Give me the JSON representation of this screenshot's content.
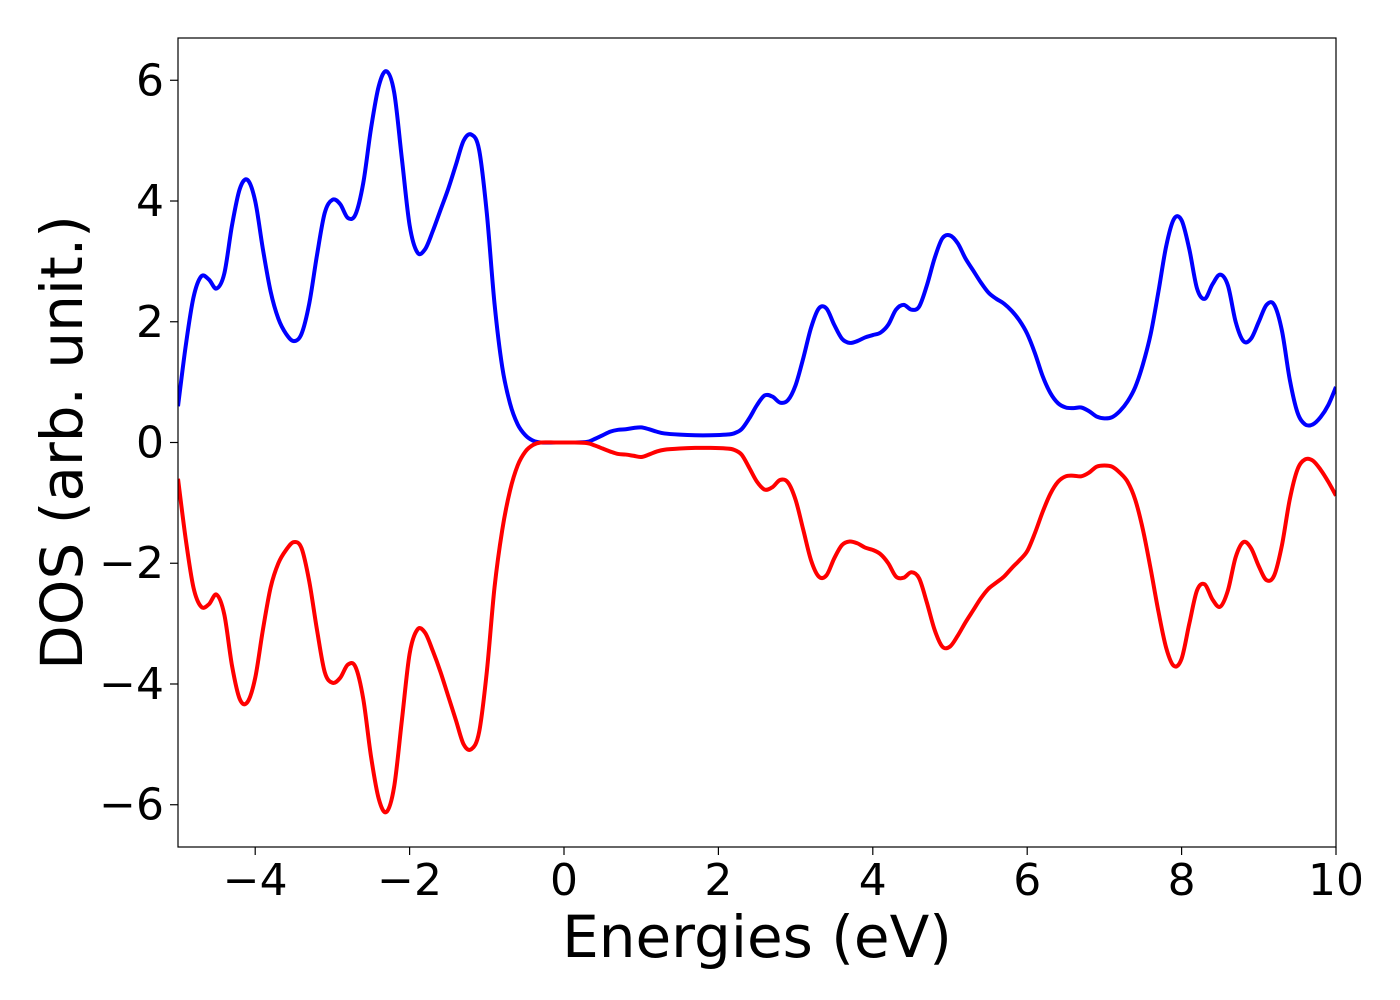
{
  "chart_data": {
    "type": "line",
    "title": "",
    "xlabel": "Energies (eV)",
    "ylabel": "DOS (arb. unit.)",
    "xlim": [
      -5,
      10
    ],
    "ylim": [
      -6.7,
      6.7
    ],
    "xticks": [
      -4,
      -2,
      0,
      2,
      4,
      6,
      8,
      10
    ],
    "yticks": [
      -6,
      -4,
      -2,
      0,
      2,
      4,
      6
    ],
    "xtick_labels": [
      "−4",
      "−2",
      "0",
      "2",
      "4",
      "6",
      "8",
      "10"
    ],
    "ytick_labels": [
      "−6",
      "−4",
      "−2",
      "0",
      "2",
      "4",
      "6"
    ],
    "grid": false,
    "legend": "none",
    "series": [
      {
        "color": "#0000ff",
        "points": [
          [
            -5.0,
            0.6
          ],
          [
            -4.9,
            1.6
          ],
          [
            -4.8,
            2.4
          ],
          [
            -4.7,
            2.75
          ],
          [
            -4.6,
            2.7
          ],
          [
            -4.5,
            2.55
          ],
          [
            -4.4,
            2.8
          ],
          [
            -4.3,
            3.6
          ],
          [
            -4.2,
            4.2
          ],
          [
            -4.1,
            4.35
          ],
          [
            -4.0,
            4.0
          ],
          [
            -3.9,
            3.2
          ],
          [
            -3.8,
            2.5
          ],
          [
            -3.7,
            2.05
          ],
          [
            -3.6,
            1.8
          ],
          [
            -3.5,
            1.68
          ],
          [
            -3.4,
            1.8
          ],
          [
            -3.3,
            2.3
          ],
          [
            -3.2,
            3.1
          ],
          [
            -3.1,
            3.8
          ],
          [
            -3.0,
            4.02
          ],
          [
            -2.9,
            3.95
          ],
          [
            -2.8,
            3.72
          ],
          [
            -2.7,
            3.78
          ],
          [
            -2.6,
            4.3
          ],
          [
            -2.5,
            5.2
          ],
          [
            -2.4,
            5.9
          ],
          [
            -2.3,
            6.15
          ],
          [
            -2.2,
            5.8
          ],
          [
            -2.1,
            4.7
          ],
          [
            -2.0,
            3.6
          ],
          [
            -1.9,
            3.15
          ],
          [
            -1.8,
            3.2
          ],
          [
            -1.7,
            3.5
          ],
          [
            -1.6,
            3.85
          ],
          [
            -1.5,
            4.2
          ],
          [
            -1.4,
            4.6
          ],
          [
            -1.3,
            5.0
          ],
          [
            -1.2,
            5.1
          ],
          [
            -1.1,
            4.85
          ],
          [
            -1.0,
            3.8
          ],
          [
            -0.9,
            2.3
          ],
          [
            -0.8,
            1.25
          ],
          [
            -0.7,
            0.65
          ],
          [
            -0.6,
            0.3
          ],
          [
            -0.5,
            0.12
          ],
          [
            -0.4,
            0.03
          ],
          [
            -0.3,
            0.0
          ],
          [
            -0.1,
            0.0
          ],
          [
            0.1,
            0.0
          ],
          [
            0.3,
            0.01
          ],
          [
            0.4,
            0.06
          ],
          [
            0.5,
            0.12
          ],
          [
            0.6,
            0.18
          ],
          [
            0.7,
            0.21
          ],
          [
            0.8,
            0.22
          ],
          [
            0.9,
            0.24
          ],
          [
            1.0,
            0.25
          ],
          [
            1.1,
            0.22
          ],
          [
            1.2,
            0.18
          ],
          [
            1.3,
            0.15
          ],
          [
            1.5,
            0.13
          ],
          [
            1.7,
            0.12
          ],
          [
            1.9,
            0.12
          ],
          [
            2.1,
            0.13
          ],
          [
            2.2,
            0.15
          ],
          [
            2.3,
            0.22
          ],
          [
            2.4,
            0.4
          ],
          [
            2.5,
            0.62
          ],
          [
            2.6,
            0.78
          ],
          [
            2.7,
            0.76
          ],
          [
            2.8,
            0.66
          ],
          [
            2.9,
            0.7
          ],
          [
            3.0,
            0.95
          ],
          [
            3.1,
            1.4
          ],
          [
            3.2,
            1.9
          ],
          [
            3.3,
            2.22
          ],
          [
            3.4,
            2.22
          ],
          [
            3.5,
            1.95
          ],
          [
            3.6,
            1.72
          ],
          [
            3.7,
            1.65
          ],
          [
            3.8,
            1.68
          ],
          [
            3.9,
            1.74
          ],
          [
            4.0,
            1.78
          ],
          [
            4.1,
            1.82
          ],
          [
            4.2,
            1.95
          ],
          [
            4.3,
            2.2
          ],
          [
            4.4,
            2.28
          ],
          [
            4.5,
            2.2
          ],
          [
            4.6,
            2.25
          ],
          [
            4.7,
            2.6
          ],
          [
            4.8,
            3.05
          ],
          [
            4.9,
            3.38
          ],
          [
            5.0,
            3.43
          ],
          [
            5.1,
            3.3
          ],
          [
            5.2,
            3.05
          ],
          [
            5.3,
            2.85
          ],
          [
            5.4,
            2.65
          ],
          [
            5.5,
            2.48
          ],
          [
            5.6,
            2.38
          ],
          [
            5.7,
            2.3
          ],
          [
            5.8,
            2.18
          ],
          [
            5.9,
            2.02
          ],
          [
            6.0,
            1.8
          ],
          [
            6.1,
            1.48
          ],
          [
            6.2,
            1.1
          ],
          [
            6.3,
            0.82
          ],
          [
            6.4,
            0.65
          ],
          [
            6.5,
            0.58
          ],
          [
            6.6,
            0.57
          ],
          [
            6.7,
            0.58
          ],
          [
            6.8,
            0.52
          ],
          [
            6.9,
            0.43
          ],
          [
            7.0,
            0.4
          ],
          [
            7.1,
            0.42
          ],
          [
            7.2,
            0.52
          ],
          [
            7.3,
            0.68
          ],
          [
            7.4,
            0.92
          ],
          [
            7.5,
            1.3
          ],
          [
            7.6,
            1.8
          ],
          [
            7.7,
            2.5
          ],
          [
            7.8,
            3.25
          ],
          [
            7.9,
            3.7
          ],
          [
            8.0,
            3.68
          ],
          [
            8.1,
            3.2
          ],
          [
            8.2,
            2.55
          ],
          [
            8.3,
            2.38
          ],
          [
            8.4,
            2.62
          ],
          [
            8.5,
            2.78
          ],
          [
            8.6,
            2.6
          ],
          [
            8.7,
            2.0
          ],
          [
            8.8,
            1.68
          ],
          [
            8.9,
            1.72
          ],
          [
            9.0,
            2.0
          ],
          [
            9.1,
            2.28
          ],
          [
            9.2,
            2.28
          ],
          [
            9.3,
            1.85
          ],
          [
            9.4,
            1.05
          ],
          [
            9.5,
            0.5
          ],
          [
            9.6,
            0.3
          ],
          [
            9.7,
            0.3
          ],
          [
            9.8,
            0.42
          ],
          [
            9.9,
            0.62
          ],
          [
            10.0,
            0.92
          ]
        ]
      },
      {
        "color": "#ff0000",
        "points": [
          [
            -5.0,
            -0.6
          ],
          [
            -4.9,
            -1.6
          ],
          [
            -4.8,
            -2.4
          ],
          [
            -4.7,
            -2.72
          ],
          [
            -4.6,
            -2.68
          ],
          [
            -4.5,
            -2.52
          ],
          [
            -4.4,
            -2.85
          ],
          [
            -4.3,
            -3.7
          ],
          [
            -4.2,
            -4.25
          ],
          [
            -4.1,
            -4.3
          ],
          [
            -4.0,
            -3.9
          ],
          [
            -3.9,
            -3.1
          ],
          [
            -3.8,
            -2.4
          ],
          [
            -3.7,
            -2.0
          ],
          [
            -3.6,
            -1.78
          ],
          [
            -3.5,
            -1.65
          ],
          [
            -3.4,
            -1.75
          ],
          [
            -3.3,
            -2.3
          ],
          [
            -3.2,
            -3.1
          ],
          [
            -3.1,
            -3.8
          ],
          [
            -3.0,
            -3.98
          ],
          [
            -2.9,
            -3.9
          ],
          [
            -2.8,
            -3.68
          ],
          [
            -2.7,
            -3.72
          ],
          [
            -2.6,
            -4.25
          ],
          [
            -2.5,
            -5.2
          ],
          [
            -2.4,
            -5.9
          ],
          [
            -2.3,
            -6.12
          ],
          [
            -2.2,
            -5.7
          ],
          [
            -2.1,
            -4.6
          ],
          [
            -2.0,
            -3.5
          ],
          [
            -1.9,
            -3.1
          ],
          [
            -1.8,
            -3.15
          ],
          [
            -1.7,
            -3.45
          ],
          [
            -1.6,
            -3.8
          ],
          [
            -1.5,
            -4.2
          ],
          [
            -1.4,
            -4.6
          ],
          [
            -1.3,
            -5.0
          ],
          [
            -1.2,
            -5.08
          ],
          [
            -1.1,
            -4.8
          ],
          [
            -1.0,
            -3.8
          ],
          [
            -0.9,
            -2.4
          ],
          [
            -0.8,
            -1.45
          ],
          [
            -0.7,
            -0.8
          ],
          [
            -0.6,
            -0.38
          ],
          [
            -0.5,
            -0.15
          ],
          [
            -0.4,
            -0.04
          ],
          [
            -0.3,
            0.0
          ],
          [
            -0.1,
            0.0
          ],
          [
            0.1,
            0.0
          ],
          [
            0.3,
            -0.01
          ],
          [
            0.4,
            -0.05
          ],
          [
            0.5,
            -0.1
          ],
          [
            0.6,
            -0.15
          ],
          [
            0.7,
            -0.19
          ],
          [
            0.8,
            -0.2
          ],
          [
            0.9,
            -0.22
          ],
          [
            1.0,
            -0.24
          ],
          [
            1.1,
            -0.2
          ],
          [
            1.2,
            -0.15
          ],
          [
            1.3,
            -0.12
          ],
          [
            1.5,
            -0.1
          ],
          [
            1.7,
            -0.09
          ],
          [
            1.9,
            -0.09
          ],
          [
            2.1,
            -0.1
          ],
          [
            2.2,
            -0.12
          ],
          [
            2.3,
            -0.2
          ],
          [
            2.4,
            -0.42
          ],
          [
            2.5,
            -0.65
          ],
          [
            2.6,
            -0.78
          ],
          [
            2.7,
            -0.74
          ],
          [
            2.8,
            -0.62
          ],
          [
            2.9,
            -0.66
          ],
          [
            3.0,
            -0.95
          ],
          [
            3.1,
            -1.45
          ],
          [
            3.2,
            -1.95
          ],
          [
            3.3,
            -2.22
          ],
          [
            3.4,
            -2.2
          ],
          [
            3.5,
            -1.92
          ],
          [
            3.6,
            -1.7
          ],
          [
            3.7,
            -1.64
          ],
          [
            3.8,
            -1.67
          ],
          [
            3.9,
            -1.74
          ],
          [
            4.0,
            -1.78
          ],
          [
            4.1,
            -1.85
          ],
          [
            4.2,
            -2.0
          ],
          [
            4.3,
            -2.22
          ],
          [
            4.4,
            -2.24
          ],
          [
            4.5,
            -2.15
          ],
          [
            4.6,
            -2.25
          ],
          [
            4.7,
            -2.65
          ],
          [
            4.8,
            -3.1
          ],
          [
            4.9,
            -3.38
          ],
          [
            5.0,
            -3.38
          ],
          [
            5.1,
            -3.2
          ],
          [
            5.2,
            -2.98
          ],
          [
            5.3,
            -2.78
          ],
          [
            5.4,
            -2.58
          ],
          [
            5.5,
            -2.42
          ],
          [
            5.6,
            -2.32
          ],
          [
            5.7,
            -2.22
          ],
          [
            5.8,
            -2.08
          ],
          [
            5.9,
            -1.95
          ],
          [
            6.0,
            -1.8
          ],
          [
            6.1,
            -1.5
          ],
          [
            6.2,
            -1.15
          ],
          [
            6.3,
            -0.85
          ],
          [
            6.4,
            -0.65
          ],
          [
            6.5,
            -0.56
          ],
          [
            6.6,
            -0.55
          ],
          [
            6.7,
            -0.56
          ],
          [
            6.8,
            -0.5
          ],
          [
            6.9,
            -0.4
          ],
          [
            7.0,
            -0.38
          ],
          [
            7.1,
            -0.4
          ],
          [
            7.2,
            -0.5
          ],
          [
            7.3,
            -0.65
          ],
          [
            7.4,
            -0.95
          ],
          [
            7.5,
            -1.45
          ],
          [
            7.6,
            -2.1
          ],
          [
            7.7,
            -2.8
          ],
          [
            7.8,
            -3.4
          ],
          [
            7.9,
            -3.7
          ],
          [
            8.0,
            -3.58
          ],
          [
            8.1,
            -3.0
          ],
          [
            8.2,
            -2.45
          ],
          [
            8.3,
            -2.35
          ],
          [
            8.4,
            -2.6
          ],
          [
            8.5,
            -2.72
          ],
          [
            8.6,
            -2.45
          ],
          [
            8.7,
            -1.9
          ],
          [
            8.8,
            -1.65
          ],
          [
            8.9,
            -1.75
          ],
          [
            9.0,
            -2.05
          ],
          [
            9.1,
            -2.28
          ],
          [
            9.2,
            -2.2
          ],
          [
            9.3,
            -1.7
          ],
          [
            9.4,
            -0.95
          ],
          [
            9.5,
            -0.45
          ],
          [
            9.6,
            -0.28
          ],
          [
            9.7,
            -0.3
          ],
          [
            9.8,
            -0.45
          ],
          [
            9.9,
            -0.65
          ],
          [
            10.0,
            -0.88
          ]
        ]
      }
    ]
  }
}
